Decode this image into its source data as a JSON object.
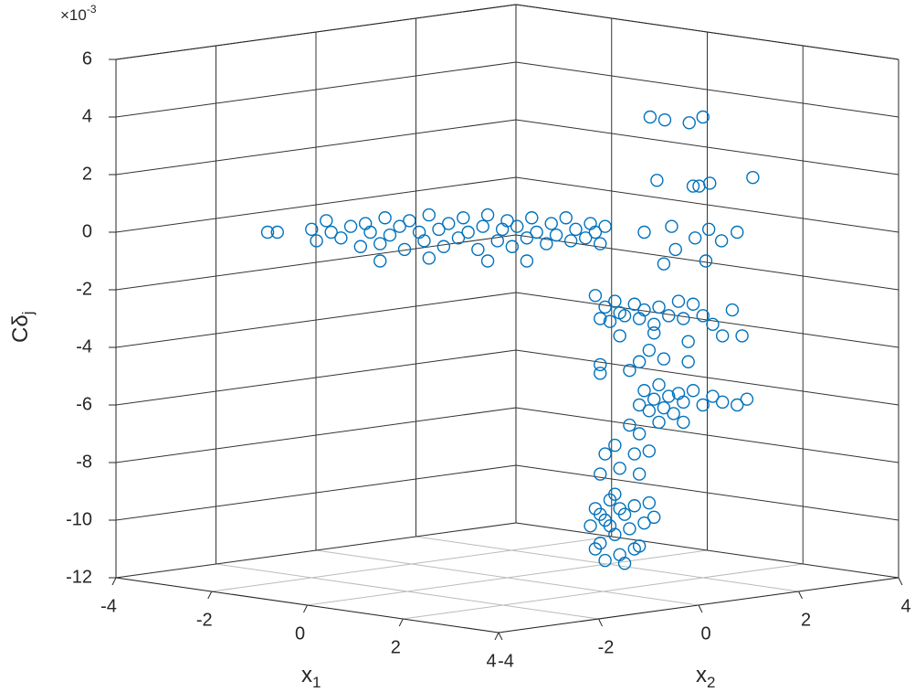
{
  "chart_data": {
    "type": "scatter3d",
    "xlabel": [
      "x",
      "1"
    ],
    "ylabel": [
      "x",
      "2"
    ],
    "zlabel": [
      "Cδ",
      "j"
    ],
    "zscale": [
      "×10",
      "-3"
    ],
    "xlim": [
      -4,
      4
    ],
    "ylim": [
      -4,
      4
    ],
    "zlim": [
      -12,
      6
    ],
    "xticks": [
      -4,
      -2,
      0,
      2,
      4
    ],
    "yticks": [
      -4,
      -2,
      0,
      2,
      4
    ],
    "zticks": [
      -12,
      -10,
      -8,
      -6,
      -4,
      -2,
      0,
      2,
      4,
      6
    ],
    "grid": true,
    "series": [
      {
        "color": "#0072bd",
        "x": [
          -2.45,
          -2.35,
          -2.0,
          -1.95,
          -1.85,
          -1.8,
          -1.7,
          -1.6,
          -1.5,
          -1.45,
          -1.4,
          -1.3,
          -1.25,
          -1.2,
          -1.1,
          -1.05,
          -1.0,
          -0.9,
          -0.85,
          -0.8,
          -0.7,
          -0.65,
          -0.6,
          -0.5,
          -0.45,
          -0.4,
          -0.3,
          -0.25,
          -0.2,
          -0.1,
          -0.05,
          0,
          0.05,
          0.1,
          0.2,
          0.25,
          0.3,
          0.4,
          0.45,
          0.5,
          0.6,
          0.65,
          0.7,
          0.8,
          0.85,
          0.9,
          0.95,
          1.0,
          -1.3,
          -0.8,
          -0.2,
          0.2,
          0.9,
          0.95,
          1.0,
          1.05,
          1.1,
          1.15,
          1.2,
          1.3,
          1.35,
          1.4,
          1.5,
          1.55,
          1.65,
          1.75,
          1.8,
          1.9,
          2.0,
          2.1,
          2.3,
          1.15,
          1.5,
          1.85,
          2.2,
          1.6,
          1.35,
          1.85,
          0.95,
          1.45,
          1.35,
          1.4,
          1.45,
          1.5,
          1.55,
          1.6,
          1.65,
          1.7,
          1.75,
          1.8,
          1.9,
          2.0,
          2.1,
          2.2,
          2.35,
          2.45,
          1.55,
          1.8,
          1.46,
          1.61,
          1.86,
          2.0,
          1.53,
          1.9,
          1.96,
          2.07,
          2.51,
          1.4,
          1.68,
          1.92,
          2.06,
          2.35,
          2.19,
          1.72,
          1.6,
          2.03,
          2.4,
          1.25,
          1.35,
          1.1,
          1.0,
          1.3,
          1.45,
          1.15,
          0.95,
          1.35,
          1.25,
          0.95,
          0.85,
          0.9,
          0.95,
          1.0,
          1.05,
          1.1,
          1.15,
          1.2,
          1.25,
          1.3,
          1.35,
          1.4,
          1.45,
          1.5,
          1.0,
          1.2,
          0.9,
          1.1,
          1.3,
          1.05,
          1.15,
          0.95
        ],
        "y": [
          -2.45,
          -2.35,
          -2.0,
          -1.95,
          -1.85,
          -1.8,
          -1.7,
          -1.6,
          -1.5,
          -1.45,
          -1.4,
          -1.3,
          -1.25,
          -1.2,
          -1.1,
          -1.05,
          -1.0,
          -0.9,
          -0.85,
          -0.8,
          -0.7,
          -0.65,
          -0.6,
          -0.5,
          -0.45,
          -0.4,
          -0.3,
          -0.25,
          -0.2,
          -0.1,
          -0.05,
          0,
          0.05,
          0.1,
          0.2,
          0.25,
          0.3,
          0.4,
          0.45,
          0.5,
          0.6,
          0.65,
          0.7,
          0.8,
          0.85,
          0.9,
          0.95,
          1.0,
          -1.3,
          -0.8,
          -0.2,
          0.2,
          0.9,
          0.95,
          1.0,
          1.05,
          1.1,
          1.15,
          1.2,
          1.3,
          1.35,
          1.4,
          1.5,
          1.55,
          1.65,
          1.75,
          1.8,
          1.9,
          2.0,
          2.1,
          2.3,
          1.15,
          1.5,
          1.85,
          2.2,
          1.6,
          1.35,
          1.85,
          0.95,
          1.45,
          1.35,
          1.4,
          1.45,
          1.5,
          1.55,
          1.6,
          1.65,
          1.7,
          1.75,
          1.8,
          1.9,
          2.0,
          2.1,
          2.2,
          2.35,
          2.45,
          1.55,
          1.8,
          1.46,
          1.61,
          1.86,
          2.0,
          1.53,
          1.9,
          1.96,
          2.07,
          2.51,
          1.4,
          1.68,
          1.92,
          2.06,
          2.35,
          2.19,
          1.72,
          1.6,
          2.03,
          2.4,
          1.25,
          1.35,
          1.1,
          1.0,
          1.3,
          1.45,
          1.15,
          0.95,
          1.35,
          1.25,
          0.95,
          0.85,
          0.9,
          0.95,
          1.0,
          1.05,
          1.1,
          1.15,
          1.2,
          1.25,
          1.3,
          1.35,
          1.4,
          1.45,
          1.5,
          1.0,
          1.2,
          0.9,
          1.1,
          1.3,
          1.05,
          1.15,
          0.95
        ],
        "z": [
          0,
          0,
          0.1,
          -0.3,
          0.4,
          0,
          -0.2,
          0.2,
          -0.5,
          0.3,
          0,
          -0.4,
          0.5,
          -0.1,
          0.2,
          -0.6,
          0.4,
          0,
          -0.3,
          0.6,
          0.1,
          -0.5,
          0.3,
          -0.2,
          0.5,
          0,
          -0.6,
          0.2,
          0.6,
          -0.3,
          0.1,
          0.4,
          -0.5,
          0.2,
          -0.2,
          0.5,
          0,
          -0.4,
          0.3,
          -0.1,
          0.5,
          -0.3,
          0.1,
          -0.2,
          0.3,
          0,
          -0.4,
          0.2,
          -1.0,
          -0.9,
          -1.0,
          -1.0,
          -2.2,
          -3.0,
          -2.6,
          -3.1,
          -2.4,
          -2.8,
          -2.9,
          -2.5,
          -3.0,
          -2.7,
          -3.2,
          -2.6,
          -2.9,
          -2.4,
          -3.0,
          -2.5,
          -2.9,
          -3.2,
          -2.7,
          -3.6,
          -3.5,
          -3.8,
          -3.6,
          -4.4,
          -4.5,
          -4.5,
          -4.6,
          -4.1,
          -6.0,
          -5.5,
          -6.2,
          -5.8,
          -5.3,
          -6.1,
          -5.7,
          -6.3,
          -5.6,
          -5.9,
          -5.5,
          -6.0,
          -5.7,
          -5.9,
          -6.0,
          -5.8,
          -6.6,
          -6.6,
          4.0,
          3.9,
          3.8,
          4.0,
          1.8,
          1.6,
          1.6,
          1.7,
          1.9,
          0,
          0.2,
          -0.2,
          0.1,
          0,
          -0.3,
          -0.6,
          -1.1,
          -1.0,
          -3.6,
          -6.7,
          -7.0,
          -7.4,
          -7.7,
          -7.7,
          -7.6,
          -8.2,
          -8.4,
          -8.4,
          -4.8,
          -4.9,
          -10.2,
          -9.6,
          -10.8,
          -10.0,
          -9.3,
          -10.5,
          -11.2,
          -9.8,
          -10.3,
          -9.5,
          -10.9,
          -10.1,
          -9.4,
          -9.9,
          -11.4,
          -11.5,
          -11.0,
          -9.1,
          -11.0,
          -10.2,
          -9.6,
          -9.8
        ]
      }
    ]
  }
}
